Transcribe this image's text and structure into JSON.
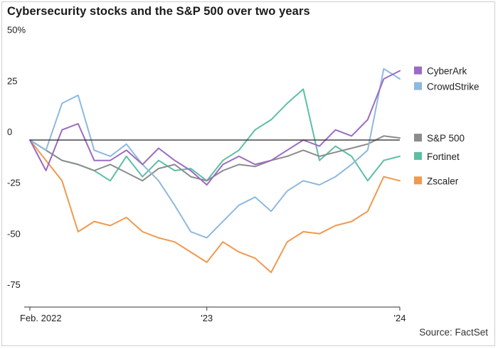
{
  "chart_data": {
    "type": "line",
    "title": "Cybersecurity stocks and the S&P 500 over two years",
    "source": "Source: FactSet",
    "xlabel": "",
    "ylabel": "",
    "ylim": [
      -82,
      52
    ],
    "y_ticks": [
      {
        "value": 50,
        "label": "50%"
      },
      {
        "value": 25,
        "label": "25"
      },
      {
        "value": 0,
        "label": "0"
      },
      {
        "value": -25,
        "label": "-25"
      },
      {
        "value": -50,
        "label": "-50"
      },
      {
        "value": -75,
        "label": "-75"
      }
    ],
    "x_ticks": [
      {
        "value": 0,
        "label": "Feb. 2022"
      },
      {
        "value": 11,
        "label": "'23"
      },
      {
        "value": 23,
        "label": "'24"
      }
    ],
    "x": [
      0,
      1,
      2,
      3,
      4,
      5,
      6,
      7,
      8,
      9,
      10,
      11,
      12,
      13,
      14,
      15,
      16,
      17,
      18,
      19,
      20,
      21,
      22,
      23
    ],
    "x_unit": "months since Feb. 2022",
    "series": [
      {
        "name": "CyberArk",
        "color": "#9b6bc2",
        "values": [
          0,
          -15,
          5,
          8,
          -10,
          -10,
          -5,
          -12,
          -4,
          -10,
          -15,
          -22,
          -12,
          -8,
          -12,
          -10,
          -5,
          0,
          -3,
          5,
          2,
          10,
          30,
          34
        ]
      },
      {
        "name": "CrowdStrike",
        "color": "#8fb8de",
        "values": [
          0,
          -5,
          18,
          22,
          -5,
          -8,
          -2,
          -12,
          -20,
          -32,
          -45,
          -48,
          -40,
          -32,
          -28,
          -35,
          -25,
          -20,
          -22,
          -18,
          -12,
          -5,
          35,
          30
        ]
      },
      {
        "name": "S&P 500",
        "color": "#8c8c8c",
        "values": [
          0,
          -5,
          -10,
          -12,
          -15,
          -12,
          -16,
          -20,
          -14,
          -12,
          -18,
          -20,
          -15,
          -12,
          -13,
          -10,
          -8,
          -5,
          -8,
          -6,
          -4,
          -2,
          2,
          1
        ]
      },
      {
        "name": "Fortinet",
        "color": "#5cbfa5",
        "values": [
          0,
          -5,
          -10,
          -12,
          -15,
          -20,
          -8,
          -18,
          -10,
          -15,
          -14,
          -20,
          -10,
          -5,
          5,
          10,
          18,
          25,
          -10,
          -3,
          -8,
          -20,
          -10,
          -8
        ]
      },
      {
        "name": "Zscaler",
        "color": "#f0994e",
        "values": [
          0,
          -10,
          -20,
          -45,
          -40,
          -42,
          -38,
          -45,
          -48,
          -50,
          -55,
          -60,
          -50,
          -55,
          -58,
          -65,
          -50,
          -45,
          -46,
          -42,
          -40,
          -35,
          -18,
          -20
        ]
      }
    ],
    "legend": "right",
    "grid": false
  }
}
